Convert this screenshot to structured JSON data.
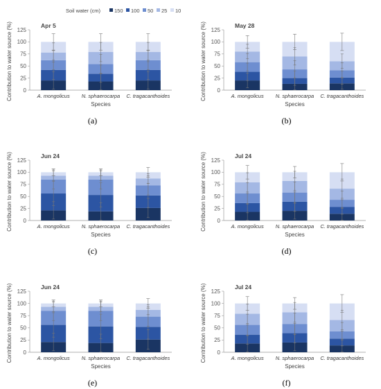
{
  "legend": {
    "title": "Soil water (cm)",
    "entries": [
      {
        "name": "150",
        "color": "#1a3563"
      },
      {
        "name": "100",
        "color": "#2c55a3"
      },
      {
        "name": "50",
        "color": "#6e8ed0"
      },
      {
        "name": "25",
        "color": "#a4b8e4"
      },
      {
        "name": "10",
        "color": "#d6def3"
      }
    ]
  },
  "chart_data": [
    {
      "type": "bar",
      "stacked": true,
      "panel_label": "(a)",
      "title": "Apr 5",
      "xlabel": "Species",
      "ylabel": "Contribution to water source (%)",
      "ylim": [
        0,
        125
      ],
      "yticks": [
        0,
        25,
        50,
        75,
        100,
        125
      ],
      "categories": [
        "A. mongolicus",
        "N. sphaerocarpa",
        "C. tragacanthoides"
      ],
      "series": [
        {
          "name": "150",
          "values": [
            20,
            18,
            20
          ]
        },
        {
          "name": "100",
          "values": [
            22,
            16,
            22
          ]
        },
        {
          "name": "50",
          "values": [
            20,
            20,
            20
          ]
        },
        {
          "name": "25",
          "values": [
            16,
            25,
            17
          ]
        },
        {
          "name": "10",
          "values": [
            22,
            21,
            21
          ]
        }
      ],
      "errors": [
        {
          "category": "A. mongolicus",
          "cumulative": [
            20,
            42,
            62,
            78
          ],
          "err": [
            18,
            20,
            20,
            20
          ],
          "top": 100,
          "top_err": 17
        },
        {
          "category": "N. sphaerocarpa",
          "cumulative": [
            18,
            34,
            54,
            79
          ],
          "err": [
            17,
            18,
            20,
            20
          ],
          "top": 100,
          "top_err": 17
        },
        {
          "category": "C. tragacanthoides",
          "cumulative": [
            20,
            42,
            62,
            79
          ],
          "err": [
            18,
            20,
            20,
            20
          ],
          "top": 100,
          "top_err": 17
        }
      ]
    },
    {
      "type": "bar",
      "stacked": true,
      "panel_label": "(b)",
      "title": "May 28",
      "xlabel": "Species",
      "ylabel": "Contribution to water source (%)",
      "ylim": [
        0,
        125
      ],
      "yticks": [
        0,
        25,
        50,
        75,
        100,
        125
      ],
      "categories": [
        "A. mongolicus",
        "N. sphaerocarpa",
        "C. tragacanthoides"
      ],
      "series": [
        {
          "name": "150",
          "values": [
            20,
            13,
            14
          ]
        },
        {
          "name": "100",
          "values": [
            18,
            12,
            12
          ]
        },
        {
          "name": "50",
          "values": [
            20,
            18,
            15
          ]
        },
        {
          "name": "25",
          "values": [
            22,
            27,
            19
          ]
        },
        {
          "name": "10",
          "values": [
            20,
            30,
            40
          ]
        }
      ],
      "errors": [
        {
          "category": "A. mongolicus",
          "cumulative": [
            20,
            38,
            58,
            80
          ],
          "err": [
            15,
            18,
            18,
            15
          ],
          "top": 100,
          "top_err": 13
        },
        {
          "category": "N. sphaerocarpa",
          "cumulative": [
            13,
            25,
            43,
            70
          ],
          "err": [
            12,
            15,
            18,
            18
          ],
          "top": 100,
          "top_err": 16
        },
        {
          "category": "C. tragacanthoides",
          "cumulative": [
            14,
            26,
            41,
            60
          ],
          "err": [
            12,
            14,
            16,
            15
          ],
          "top": 100,
          "top_err": 18
        }
      ]
    },
    {
      "type": "bar",
      "stacked": true,
      "panel_label": "(c)",
      "title": "Jun 24",
      "xlabel": "Species",
      "ylabel": "Contribution to water source (%)",
      "ylim": [
        0,
        125
      ],
      "yticks": [
        0,
        25,
        50,
        75,
        100,
        125
      ],
      "categories": [
        "A. mongolicus",
        "N. sphaerocarpa",
        "C. tragacanthoides"
      ],
      "series": [
        {
          "name": "150",
          "values": [
            21,
            19,
            26
          ]
        },
        {
          "name": "100",
          "values": [
            35,
            34,
            26
          ]
        },
        {
          "name": "50",
          "values": [
            29,
            32,
            21
          ]
        },
        {
          "name": "25",
          "values": [
            8,
            8,
            14
          ]
        },
        {
          "name": "10",
          "values": [
            7,
            7,
            13
          ]
        }
      ],
      "errors": [
        {
          "category": "A. mongolicus",
          "cumulative": [
            21,
            56,
            85,
            93
          ],
          "err": [
            18,
            25,
            20,
            10
          ],
          "top": 100,
          "top_err": 7
        },
        {
          "category": "N. sphaerocarpa",
          "cumulative": [
            19,
            53,
            85,
            93
          ],
          "err": [
            18,
            25,
            20,
            10
          ],
          "top": 100,
          "top_err": 7
        },
        {
          "category": "C. tragacanthoides",
          "cumulative": [
            26,
            52,
            73,
            87
          ],
          "err": [
            20,
            25,
            20,
            10
          ],
          "top": 100,
          "top_err": 10
        }
      ]
    },
    {
      "type": "bar",
      "stacked": true,
      "panel_label": "(d)",
      "title": "Jul 24",
      "xlabel": "Species",
      "ylabel": "Contribution to water source (%)",
      "ylim": [
        0,
        125
      ],
      "yticks": [
        0,
        25,
        50,
        75,
        100,
        125
      ],
      "categories": [
        "A. mongolicus",
        "N. sphaerocarpa",
        "C. tragacanthoides"
      ],
      "series": [
        {
          "name": "150",
          "values": [
            18,
            20,
            14
          ]
        },
        {
          "name": "100",
          "values": [
            18,
            19,
            14
          ]
        },
        {
          "name": "50",
          "values": [
            20,
            19,
            15
          ]
        },
        {
          "name": "25",
          "values": [
            23,
            24,
            23
          ]
        },
        {
          "name": "10",
          "values": [
            21,
            18,
            34
          ]
        }
      ],
      "errors": [
        {
          "category": "A. mongolicus",
          "cumulative": [
            18,
            36,
            56,
            79
          ],
          "err": [
            17,
            20,
            22,
            20
          ],
          "top": 100,
          "top_err": 14
        },
        {
          "category": "N. sphaerocarpa",
          "cumulative": [
            20,
            39,
            58,
            82
          ],
          "err": [
            17,
            20,
            22,
            20
          ],
          "top": 100,
          "top_err": 12
        },
        {
          "category": "C. tragacanthoides",
          "cumulative": [
            14,
            28,
            43,
            66
          ],
          "err": [
            13,
            15,
            18,
            20
          ],
          "top": 100,
          "top_err": 18
        }
      ]
    },
    {
      "type": "bar",
      "stacked": true,
      "panel_label": "(e)",
      "title": "Jun 24",
      "xlabel": "Species",
      "ylabel": "Contribution to water source (%)",
      "ylim": [
        0,
        125
      ],
      "yticks": [
        0,
        25,
        50,
        75,
        100,
        125
      ],
      "categories": [
        "A. mongolicus",
        "N. sphaerocarpa",
        "C. tragacanthoides"
      ],
      "series": [
        {
          "name": "150",
          "values": [
            21,
            19,
            26
          ]
        },
        {
          "name": "100",
          "values": [
            35,
            34,
            26
          ]
        },
        {
          "name": "50",
          "values": [
            29,
            32,
            21
          ]
        },
        {
          "name": "25",
          "values": [
            8,
            8,
            14
          ]
        },
        {
          "name": "10",
          "values": [
            7,
            7,
            13
          ]
        }
      ],
      "errors": [
        {
          "category": "A. mongolicus",
          "cumulative": [
            21,
            56,
            85,
            93
          ],
          "err": [
            18,
            25,
            20,
            10
          ],
          "top": 100,
          "top_err": 7
        },
        {
          "category": "N. sphaerocarpa",
          "cumulative": [
            19,
            53,
            85,
            93
          ],
          "err": [
            18,
            25,
            20,
            10
          ],
          "top": 100,
          "top_err": 7
        },
        {
          "category": "C. tragacanthoides",
          "cumulative": [
            26,
            52,
            73,
            87
          ],
          "err": [
            20,
            25,
            20,
            10
          ],
          "top": 100,
          "top_err": 10
        }
      ]
    },
    {
      "type": "bar",
      "stacked": true,
      "panel_label": "(f)",
      "title": "Jul 24",
      "xlabel": "Species",
      "ylabel": "Contribution to water source (%)",
      "ylim": [
        0,
        125
      ],
      "yticks": [
        0,
        25,
        50,
        75,
        100,
        125
      ],
      "categories": [
        "A. mongolicus",
        "N. sphaerocarpa",
        "C. tragacanthoides"
      ],
      "series": [
        {
          "name": "150",
          "values": [
            18,
            20,
            14
          ]
        },
        {
          "name": "100",
          "values": [
            18,
            19,
            14
          ]
        },
        {
          "name": "50",
          "values": [
            20,
            19,
            15
          ]
        },
        {
          "name": "25",
          "values": [
            23,
            24,
            23
          ]
        },
        {
          "name": "10",
          "values": [
            21,
            18,
            34
          ]
        }
      ],
      "errors": [
        {
          "category": "A. mongolicus",
          "cumulative": [
            18,
            36,
            56,
            79
          ],
          "err": [
            17,
            20,
            22,
            20
          ],
          "top": 100,
          "top_err": 14
        },
        {
          "category": "N. sphaerocarpa",
          "cumulative": [
            20,
            39,
            58,
            82
          ],
          "err": [
            17,
            20,
            22,
            20
          ],
          "top": 100,
          "top_err": 12
        },
        {
          "category": "C. tragacanthoides",
          "cumulative": [
            14,
            28,
            43,
            66
          ],
          "err": [
            13,
            15,
            18,
            20
          ],
          "top": 100,
          "top_err": 18
        }
      ]
    }
  ]
}
